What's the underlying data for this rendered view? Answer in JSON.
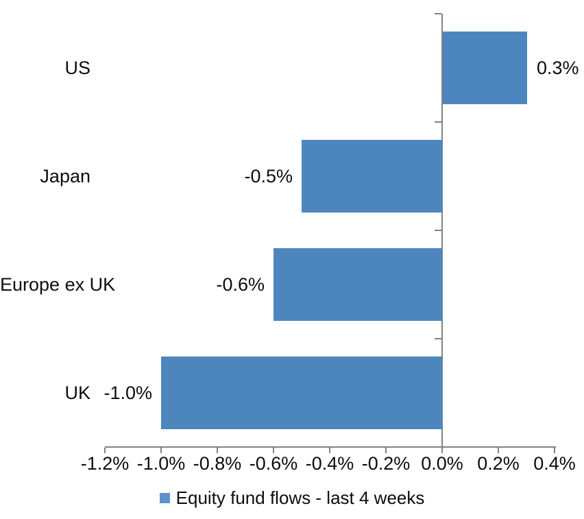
{
  "chart_data": {
    "type": "bar",
    "orientation": "horizontal",
    "title": "",
    "categories": [
      "US",
      "Japan",
      "Europe ex UK",
      "UK"
    ],
    "values": [
      0.3,
      -0.5,
      -0.6,
      -1.0
    ],
    "data_labels": [
      "0.3%",
      "-0.5%",
      "-0.6%",
      "-1.0%"
    ],
    "value_unit": "%",
    "xlim": [
      -1.2,
      0.4
    ],
    "x_tick_values": [
      -1.2,
      -1.0,
      -0.8,
      -0.6,
      -0.4,
      -0.2,
      0.0,
      0.2,
      0.4
    ],
    "x_tick_labels": [
      "-1.2%",
      "-1.0%",
      "-0.8%",
      "-0.6%",
      "-0.4%",
      "-0.2%",
      "0.0%",
      "0.2%",
      "0.4%"
    ],
    "grid": false,
    "legend": {
      "position": "bottom",
      "label": "Equity fund flows - last 4 weeks",
      "marker_color": "#5c93c8"
    },
    "colors": {
      "bar": "#4d86bc",
      "axis": "#828282",
      "text": "#0d0d0d",
      "background": "#ffffff"
    }
  }
}
